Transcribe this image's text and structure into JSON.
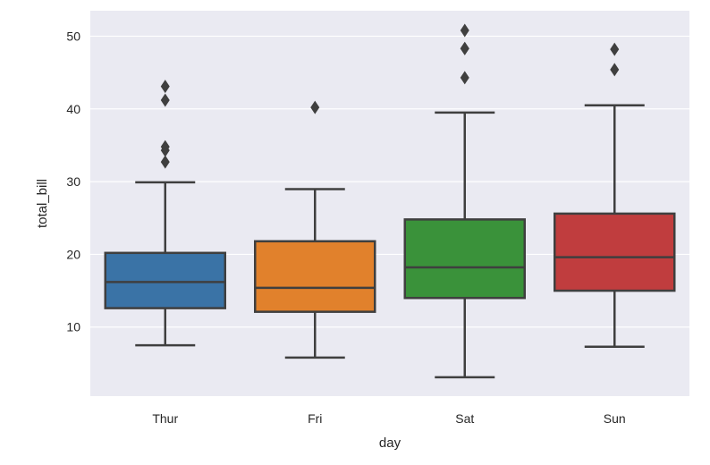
{
  "chart_data": {
    "type": "box",
    "title": "",
    "xlabel": "day",
    "ylabel": "total_bill",
    "categories": [
      "Thur",
      "Fri",
      "Sat",
      "Sun"
    ],
    "ylim": [
      0.5,
      53.5
    ],
    "yticks": [
      10,
      20,
      30,
      40,
      50
    ],
    "grid": true,
    "boxes": [
      {
        "category": "Thur",
        "whisker_low": 7.5,
        "q1": 12.6,
        "median": 16.2,
        "q3": 20.2,
        "whisker_high": 29.9,
        "outliers": [
          32.7,
          34.3,
          34.8,
          41.2,
          43.1
        ],
        "color": "#3a73a6"
      },
      {
        "category": "Fri",
        "whisker_low": 5.8,
        "q1": 12.1,
        "median": 15.4,
        "q3": 21.8,
        "whisker_high": 28.97,
        "outliers": [
          40.2
        ],
        "color": "#e1812c"
      },
      {
        "category": "Sat",
        "whisker_low": 3.1,
        "q1": 14.0,
        "median": 18.2,
        "q3": 24.8,
        "whisker_high": 39.5,
        "outliers": [
          44.3,
          48.3,
          48.3,
          50.8
        ],
        "color": "#3a923a"
      },
      {
        "category": "Sun",
        "whisker_low": 7.3,
        "q1": 15.0,
        "median": 19.6,
        "q3": 25.6,
        "whisker_high": 40.5,
        "outliers": [
          45.4,
          48.2
        ],
        "color": "#c03d3e"
      }
    ]
  }
}
